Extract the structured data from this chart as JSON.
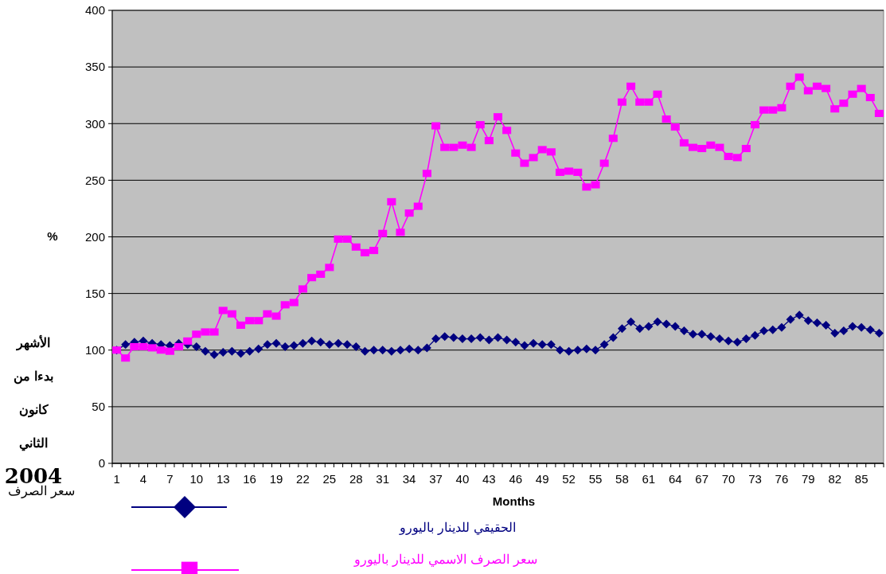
{
  "chart_data": {
    "type": "line",
    "xlabel": "Months",
    "ylabel": "%",
    "categories": [
      "1",
      null,
      null,
      "4",
      null,
      null,
      "7",
      null,
      null,
      "10",
      null,
      null,
      "13",
      null,
      null,
      "16",
      null,
      null,
      "19",
      null,
      null,
      "22",
      null,
      null,
      "25",
      null,
      null,
      "28",
      null,
      null,
      "31",
      null,
      null,
      "34",
      null,
      null,
      "37",
      null,
      null,
      "40",
      null,
      null,
      "43",
      null,
      null,
      "46",
      null,
      null,
      "49",
      null,
      null,
      "52",
      null,
      null,
      "55",
      null,
      null,
      "58",
      null,
      null,
      "61",
      null,
      null,
      "64",
      null,
      null,
      "67",
      null,
      null,
      "70",
      null,
      null,
      "73",
      null,
      null,
      "76",
      null,
      null,
      "79",
      null,
      null,
      "82",
      null,
      null,
      "85",
      null,
      null
    ],
    "series": [
      {
        "name": "الحقيقي للدينار باليورو",
        "color": "#000080",
        "marker": "diamond",
        "values": [
          100,
          105,
          107,
          108,
          106,
          105,
          104,
          106,
          105,
          103,
          99,
          96,
          98,
          99,
          97,
          99,
          101,
          105,
          106,
          103,
          104,
          106,
          108,
          107,
          105,
          106,
          105,
          103,
          99,
          100,
          100,
          99,
          100,
          101,
          100,
          102,
          110,
          112,
          111,
          110,
          110,
          111,
          109,
          111,
          109,
          107,
          104,
          106,
          105,
          105,
          100,
          99,
          100,
          101,
          100,
          105,
          111,
          119,
          125,
          119,
          121,
          125,
          123,
          121,
          117,
          114,
          114,
          112,
          110,
          108,
          107,
          110,
          113,
          117,
          118,
          120,
          127,
          131,
          126,
          124,
          122,
          115,
          117,
          121,
          120,
          118,
          115
        ]
      },
      {
        "name": "سعر الصرف الاسمي للدينار باليورو",
        "color": "#ff00ff",
        "marker": "square",
        "values": [
          100,
          93,
          103,
          103,
          102,
          100,
          99,
          103,
          108,
          114,
          116,
          116,
          135,
          132,
          122,
          126,
          126,
          132,
          130,
          140,
          142,
          154,
          164,
          167,
          173,
          198,
          198,
          191,
          186,
          188,
          203,
          231,
          204,
          221,
          227,
          256,
          298,
          279,
          279,
          281,
          279,
          299,
          285,
          306,
          294,
          274,
          265,
          270,
          277,
          275,
          257,
          258,
          257,
          244,
          246,
          265,
          287,
          319,
          333,
          319,
          319,
          326,
          304,
          297,
          283,
          279,
          278,
          281,
          279,
          271,
          270,
          278,
          299,
          312,
          312,
          314,
          333,
          341,
          329,
          333,
          331,
          313,
          318,
          326,
          331,
          323,
          309
        ]
      }
    ],
    "ylim": [
      0,
      400
    ],
    "yticks": [
      0,
      50,
      100,
      150,
      200,
      250,
      300,
      350,
      400
    ],
    "grid": "y",
    "legend": "bottom",
    "line_style": "solid",
    "annotations": [
      "الأشهر\nبدءا من\nكانون\nالثاني\n2004",
      "سعر الصرف"
    ]
  }
}
